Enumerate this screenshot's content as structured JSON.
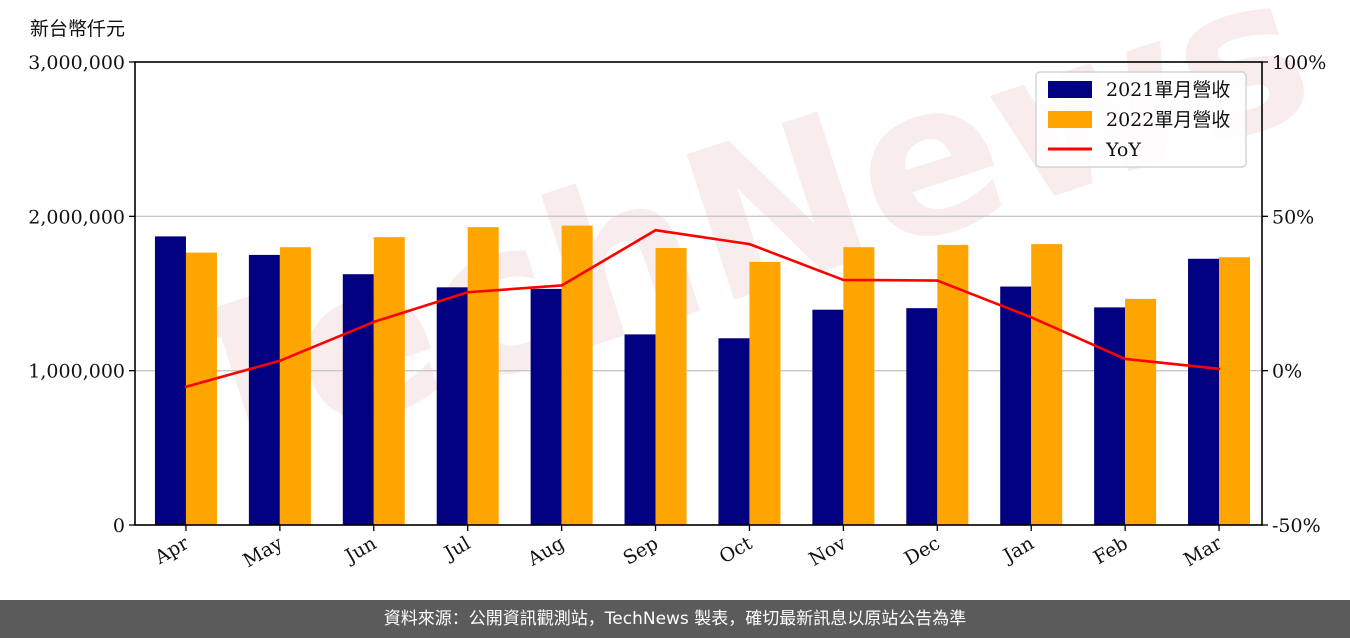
{
  "unit_label": "新台幣仟元",
  "footer_text": "資料來源：公開資訊觀測站，TechNews 製表，確切最新訊息以原站公告為準",
  "watermark_text": "TechNews",
  "chart_data": {
    "type": "bar",
    "categories": [
      "Apr",
      "May",
      "Jun",
      "Jul",
      "Aug",
      "Sep",
      "Oct",
      "Nov",
      "Dec",
      "Jan",
      "Feb",
      "Mar"
    ],
    "series": [
      {
        "name": "2021單月營收",
        "type": "bar",
        "color": "#000080",
        "axis": "left",
        "values": [
          1870000,
          1750000,
          1625000,
          1540000,
          1530000,
          1235000,
          1210000,
          1395000,
          1405000,
          1545000,
          1410000,
          1725000
        ]
      },
      {
        "name": "2022單月營收",
        "type": "bar",
        "color": "#ffa500",
        "axis": "left",
        "values": [
          1765000,
          1800000,
          1865000,
          1930000,
          1940000,
          1795000,
          1705000,
          1800000,
          1815000,
          1820000,
          1465000,
          1735000
        ]
      },
      {
        "name": "YoY",
        "type": "line",
        "color": "#ff0000",
        "axis": "right",
        "values": [
          -5.2,
          3.2,
          15.8,
          25.4,
          27.6,
          45.5,
          41.0,
          29.4,
          29.2,
          17.3,
          3.8,
          0.6
        ]
      }
    ],
    "y_left": {
      "min": 0,
      "max": 3000000,
      "ticks": [
        "0",
        "1,000,000",
        "2,000,000",
        "3,000,000"
      ]
    },
    "y_right": {
      "min": -50,
      "max": 100,
      "ticks": [
        "-50%",
        "0%",
        "50%",
        "100%"
      ]
    },
    "grid": "horizontal",
    "legend_position": "top-right"
  }
}
